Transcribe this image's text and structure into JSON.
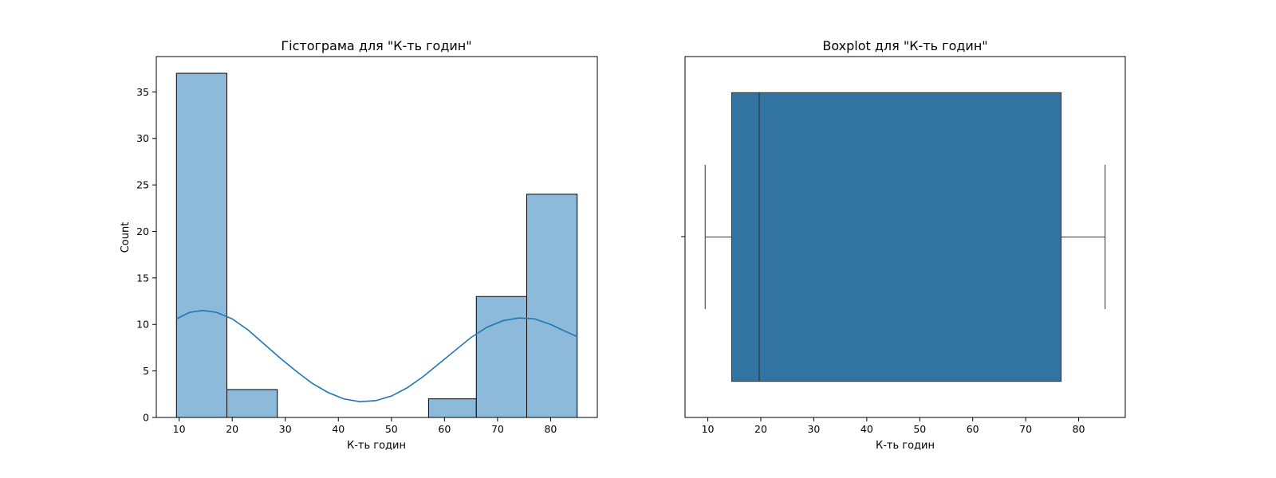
{
  "chart_data": [
    {
      "type": "bar",
      "subtype": "histogram",
      "title": "Гістограма для \"К-ть годин\"",
      "xlabel": "К-ть годин",
      "ylabel": "Count",
      "xlim": [
        5.7,
        88.8
      ],
      "ylim": [
        0,
        38.8
      ],
      "xticks": [
        10,
        20,
        30,
        40,
        50,
        60,
        70,
        80
      ],
      "yticks": [
        0,
        5,
        10,
        15,
        20,
        25,
        30,
        35
      ],
      "bins": [
        {
          "start": 9.5,
          "end": 19.0,
          "count": 37
        },
        {
          "start": 19.0,
          "end": 28.5,
          "count": 3
        },
        {
          "start": 28.5,
          "end": 38.0,
          "count": 0
        },
        {
          "start": 38.0,
          "end": 47.5,
          "count": 0
        },
        {
          "start": 47.5,
          "end": 57.0,
          "count": 0
        },
        {
          "start": 57.0,
          "end": 66.0,
          "count": 2
        },
        {
          "start": 66.0,
          "end": 75.5,
          "count": 13
        },
        {
          "start": 75.5,
          "end": 85.0,
          "count": 24
        }
      ],
      "kde": {
        "x": [
          9.5,
          12,
          14.5,
          17,
          20,
          23,
          26,
          29,
          32,
          35,
          38,
          41,
          44,
          47,
          50,
          53,
          56,
          59,
          62,
          65,
          68,
          71,
          74,
          77,
          80,
          83,
          85
        ],
        "y": [
          10.6,
          11.3,
          11.5,
          11.3,
          10.6,
          9.4,
          7.9,
          6.4,
          5.0,
          3.7,
          2.7,
          2.0,
          1.7,
          1.8,
          2.3,
          3.2,
          4.4,
          5.8,
          7.2,
          8.6,
          9.7,
          10.4,
          10.7,
          10.6,
          10.0,
          9.2,
          8.7
        ]
      },
      "colors": {
        "bar": "#8db9da",
        "edge": "#000000",
        "kde": "#1f77b4"
      },
      "grid": false
    },
    {
      "type": "boxplot",
      "title": "Boxplot для \"К-ть годин\"",
      "xlabel": "К-ть годин",
      "xlim": [
        5.7,
        88.8
      ],
      "xticks": [
        10,
        20,
        30,
        40,
        50,
        60,
        70,
        80
      ],
      "stats": {
        "whisker_low": 9.5,
        "q1": 14.5,
        "median": 19.7,
        "q3": 76.7,
        "whisker_high": 85.0
      },
      "colors": {
        "box": "#3274a1",
        "edge": "#333333"
      },
      "grid": false
    }
  ]
}
